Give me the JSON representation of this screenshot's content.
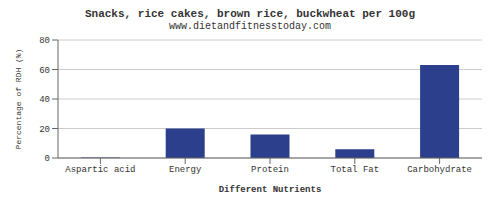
{
  "chart_data": {
    "type": "bar",
    "title": "Snacks, rice cakes, brown rice, buckwheat per 100g",
    "subtitle": "www.dietandfitnesstoday.com",
    "xlabel": "Different Nutrients",
    "ylabel": "Percentage of RDH (%)",
    "categories": [
      "Aspartic acid",
      "Energy",
      "Protein",
      "Total Fat",
      "Carbohydrate"
    ],
    "values": [
      0.3,
      20,
      16,
      6,
      63
    ],
    "color": "#2b3f8c",
    "ylim": [
      0,
      80
    ],
    "yticks": [
      0,
      20,
      40,
      60,
      80
    ],
    "grid": true
  }
}
